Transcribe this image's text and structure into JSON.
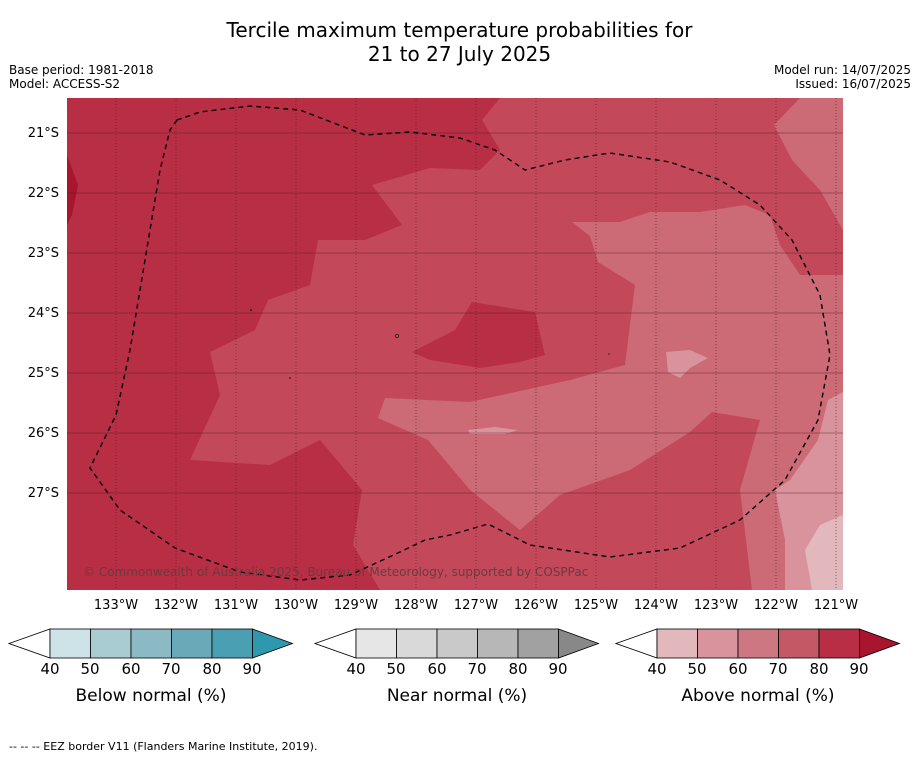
{
  "title_line1": "Tercile maximum temperature probabilities for",
  "title_line2": "21 to 27 July 2025",
  "base_period": "Base period: 1981-2018",
  "model": "Model: ACCESS-S2",
  "model_run": "Model run: 14/07/2025",
  "issued": "Issued: 16/07/2025",
  "copyright": "© Commonwealth of Australia 2025, Bureau of Meteorology, supported by COSPPac",
  "footnote": "--  --  -- EEZ border V11 (Flanders Marine Institute, 2019).",
  "lat_labels": [
    "21°S",
    "22°S",
    "23°S",
    "24°S",
    "25°S",
    "26°S",
    "27°S"
  ],
  "lon_labels": [
    "133°W",
    "132°W",
    "131°W",
    "130°W",
    "129°W",
    "128°W",
    "127°W",
    "126°W",
    "125°W",
    "124°W",
    "123°W",
    "122°W",
    "121°W"
  ],
  "colorbars": {
    "below": {
      "title": "Below normal (%)",
      "ticks": [
        "40",
        "50",
        "60",
        "70",
        "80",
        "90"
      ],
      "colors": [
        "#cde3e8",
        "#a9cbd2",
        "#8bbac5",
        "#6aa9b7",
        "#4aa0b2",
        "#2e98ae"
      ]
    },
    "near": {
      "title": "Near normal (%)",
      "ticks": [
        "40",
        "50",
        "60",
        "70",
        "80",
        "90"
      ],
      "colors": [
        "#e6e6e6",
        "#d9d9d9",
        "#c9c9c9",
        "#b7b7b7",
        "#a1a1a1",
        "#888888"
      ]
    },
    "above": {
      "title": "Above normal (%)",
      "ticks": [
        "40",
        "50",
        "60",
        "70",
        "80",
        "90"
      ],
      "colors": [
        "#e2b8bd",
        "#d9939c",
        "#cc7782",
        "#c45865",
        "#b82e44",
        "#a8152f"
      ]
    }
  }
}
